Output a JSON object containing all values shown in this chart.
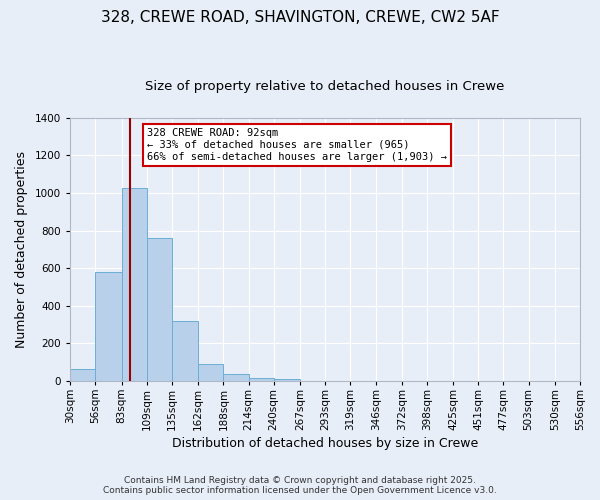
{
  "title": "328, CREWE ROAD, SHAVINGTON, CREWE, CW2 5AF",
  "subtitle": "Size of property relative to detached houses in Crewe",
  "xlabel": "Distribution of detached houses by size in Crewe",
  "ylabel": "Number of detached properties",
  "bar_values": [
    65,
    580,
    1025,
    760,
    320,
    90,
    38,
    18,
    8,
    0,
    0,
    0,
    0,
    0,
    0,
    0,
    0,
    0,
    0,
    0
  ],
  "bin_labels": [
    "30sqm",
    "56sqm",
    "83sqm",
    "109sqm",
    "135sqm",
    "162sqm",
    "188sqm",
    "214sqm",
    "240sqm",
    "267sqm",
    "293sqm",
    "319sqm",
    "346sqm",
    "372sqm",
    "398sqm",
    "425sqm",
    "451sqm",
    "477sqm",
    "503sqm",
    "530sqm",
    "556sqm"
  ],
  "bin_edges": [
    30,
    56,
    83,
    109,
    135,
    162,
    188,
    214,
    240,
    267,
    293,
    319,
    346,
    372,
    398,
    425,
    451,
    477,
    503,
    530,
    556
  ],
  "bar_color": "#b8d0ea",
  "bar_edge_color": "#6baed6",
  "background_color": "#e8eef8",
  "grid_color": "#ffffff",
  "vline_x": 92,
  "vline_color": "#990000",
  "annotation_title": "328 CREWE ROAD: 92sqm",
  "annotation_line1": "← 33% of detached houses are smaller (965)",
  "annotation_line2": "66% of semi-detached houses are larger (1,903) →",
  "annotation_box_color": "#ffffff",
  "annotation_box_edge": "#cc0000",
  "ylim": [
    0,
    1400
  ],
  "yticks": [
    0,
    200,
    400,
    600,
    800,
    1000,
    1200,
    1400
  ],
  "footer1": "Contains HM Land Registry data © Crown copyright and database right 2025.",
  "footer2": "Contains public sector information licensed under the Open Government Licence v3.0.",
  "title_fontsize": 11,
  "subtitle_fontsize": 9.5,
  "axis_label_fontsize": 9,
  "tick_fontsize": 7.5,
  "annotation_fontsize": 7.5,
  "footer_fontsize": 6.5
}
